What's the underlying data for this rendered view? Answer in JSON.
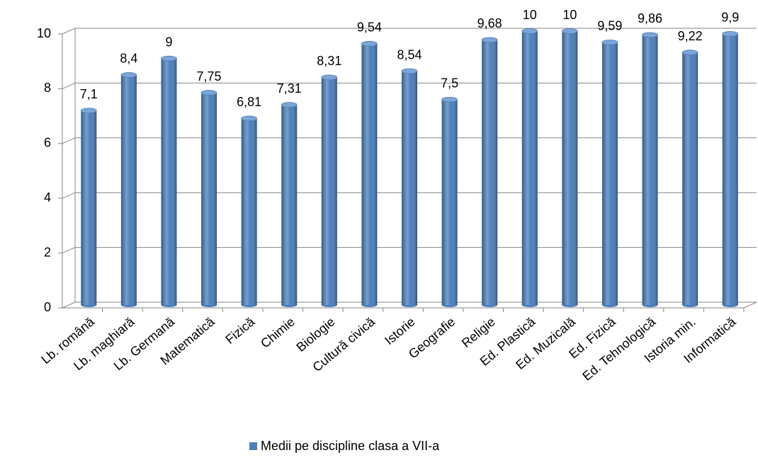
{
  "chart_data": {
    "type": "bar",
    "categories": [
      "Lb. română",
      "Lb. maghiară",
      "Lb. Germană",
      "Matematică",
      "Fizică",
      "Chimie",
      "Biologie",
      "Cultură civică",
      "Istorie",
      "Geografie",
      "Religie",
      "Ed. Plastică",
      "Ed. Muzicală",
      "Ed. Fizică",
      "Ed. Tehnologică",
      "Istoria min.",
      "Informatică"
    ],
    "series": [
      {
        "name": "Medii pe discipline clasa a VII-a",
        "color": "#4a7ebb",
        "values": [
          7.1,
          8.4,
          9,
          7.75,
          6.81,
          7.31,
          8.31,
          9.54,
          8.54,
          7.5,
          9.68,
          10,
          10,
          9.59,
          9.86,
          9.22,
          9.9
        ],
        "value_labels": [
          "7,1",
          "8,4",
          "9",
          "7,75",
          "6,81",
          "7,31",
          "8,31",
          "9,54",
          "8,54",
          "7,5",
          "9,68",
          "10",
          "10",
          "9,59",
          "9,86",
          "9,22",
          "9,9"
        ]
      }
    ],
    "ylim": [
      0,
      10
    ],
    "yticks": [
      0,
      2,
      4,
      6,
      8,
      10
    ],
    "grid": true,
    "legend": "bottom"
  }
}
